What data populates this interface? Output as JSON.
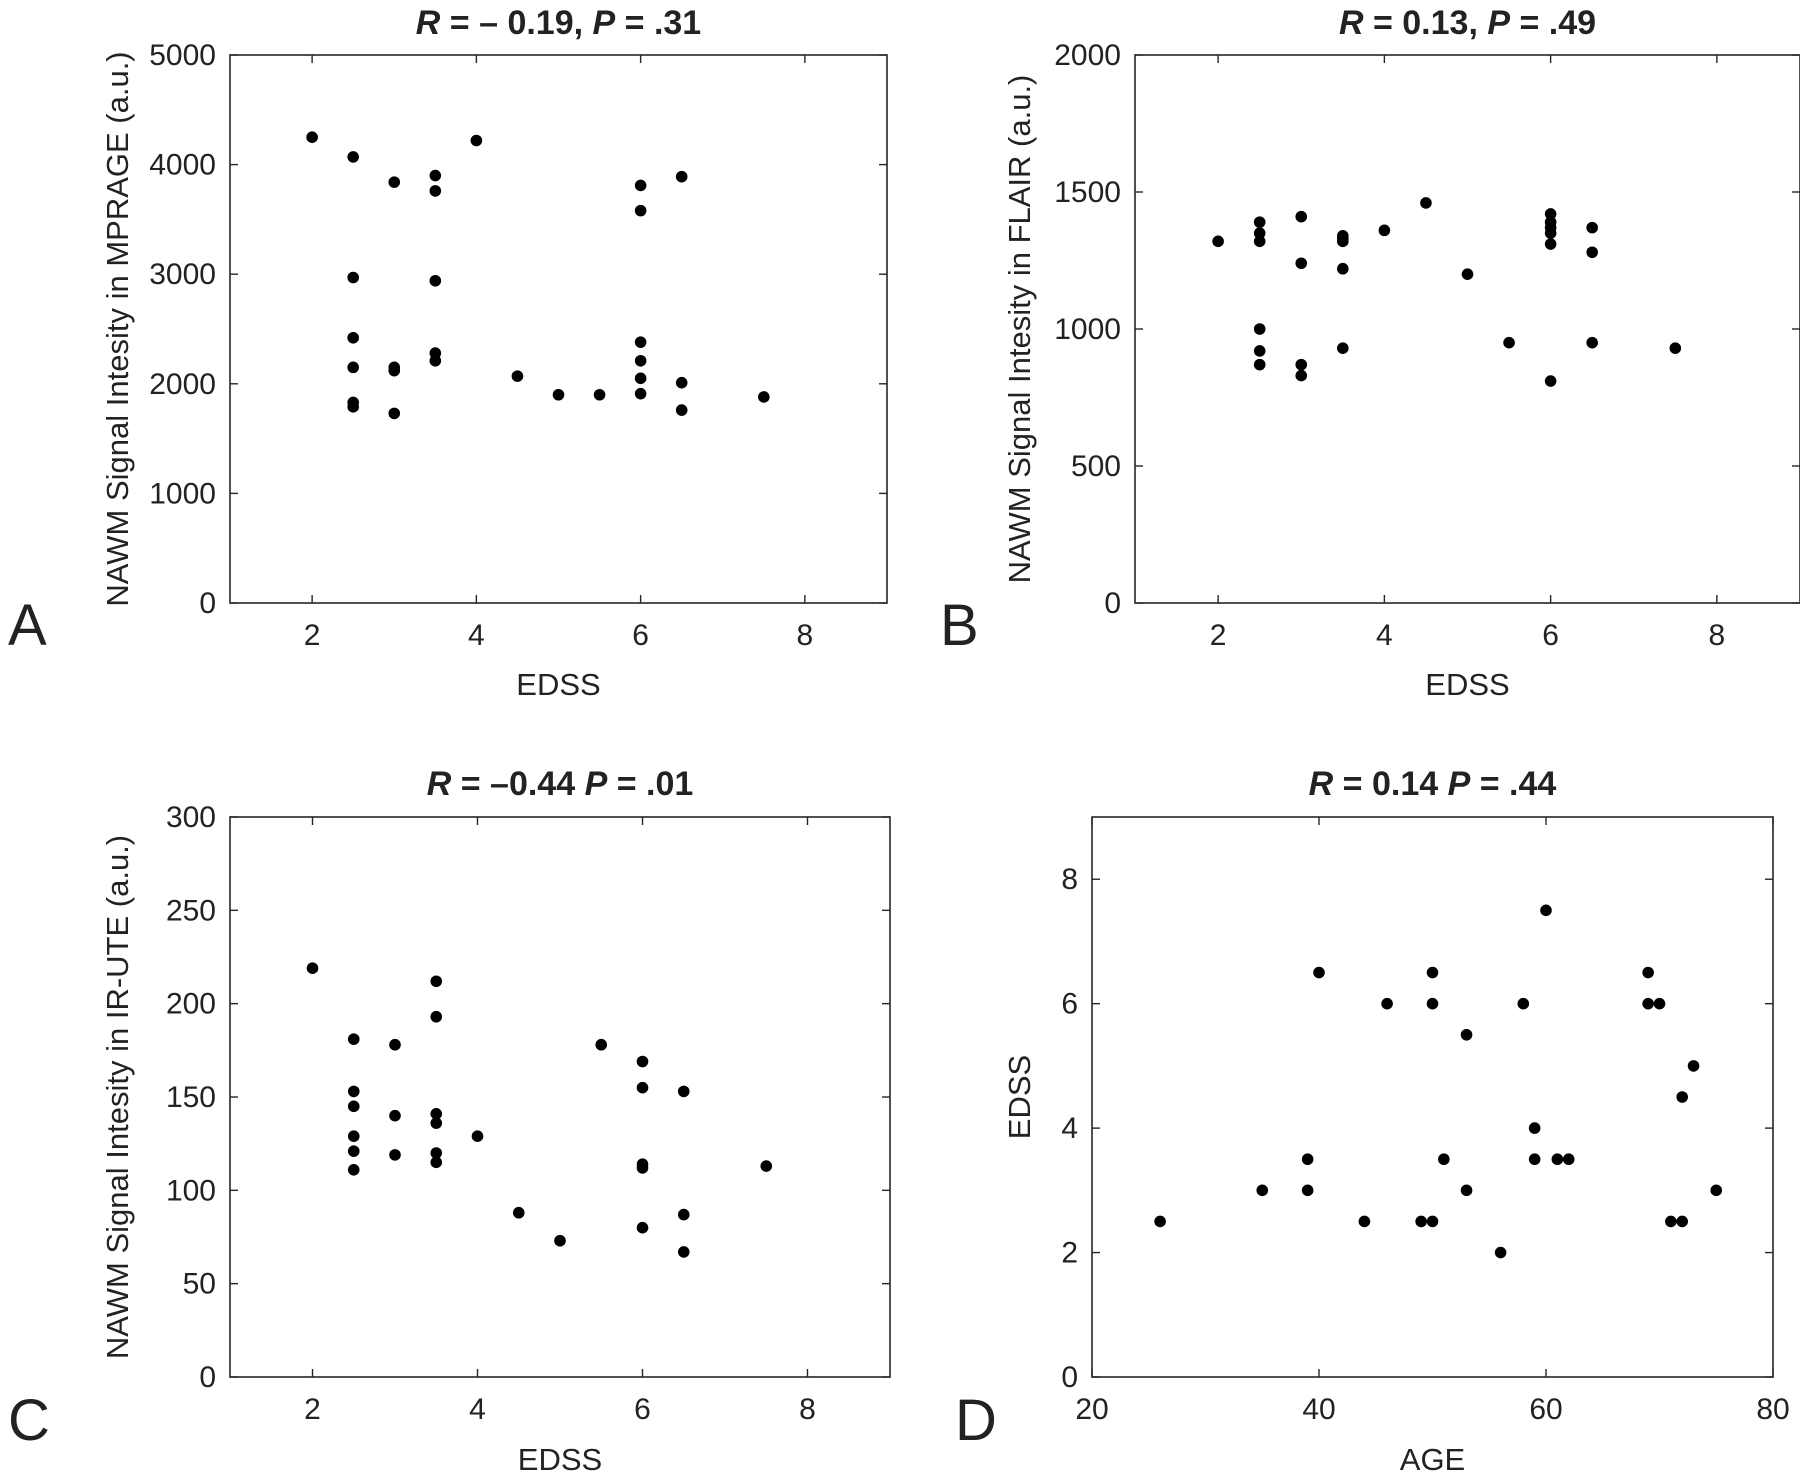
{
  "chart_data": [
    {
      "type": "scatter",
      "panel": "A",
      "title": "R = – 0.19, P = .31",
      "title_parts": [
        {
          "text": "R",
          "italic": true
        },
        {
          "text": " = – 0.19, ",
          "italic": false
        },
        {
          "text": "P",
          "italic": true
        },
        {
          "text": " = .31",
          "italic": false
        }
      ],
      "xlabel": "EDSS",
      "ylabel": "NAWM Signal Intesity in MPRAGE (a.u.)",
      "xlim": [
        1,
        9
      ],
      "ylim": [
        0,
        5000
      ],
      "xticks": [
        2,
        4,
        6,
        8
      ],
      "yticks": [
        0,
        1000,
        2000,
        3000,
        4000,
        5000
      ],
      "grid": false,
      "points": [
        [
          2,
          4250
        ],
        [
          2.5,
          4070
        ],
        [
          2.5,
          2970
        ],
        [
          2.5,
          2420
        ],
        [
          2.5,
          2150
        ],
        [
          2.5,
          1830
        ],
        [
          2.5,
          1790
        ],
        [
          3,
          3840
        ],
        [
          3,
          2150
        ],
        [
          3,
          2120
        ],
        [
          3,
          1730
        ],
        [
          3.5,
          3900
        ],
        [
          3.5,
          3760
        ],
        [
          3.5,
          2940
        ],
        [
          3.5,
          2280
        ],
        [
          3.5,
          2210
        ],
        [
          4,
          4220
        ],
        [
          4.5,
          2070
        ],
        [
          5,
          1900
        ],
        [
          5.5,
          1900
        ],
        [
          6,
          3810
        ],
        [
          6,
          3580
        ],
        [
          6,
          2380
        ],
        [
          6,
          2210
        ],
        [
          6,
          2050
        ],
        [
          6,
          1910
        ],
        [
          6.5,
          3890
        ],
        [
          6.5,
          2010
        ],
        [
          6.5,
          1760
        ],
        [
          7.5,
          1880
        ]
      ]
    },
    {
      "type": "scatter",
      "panel": "B",
      "title": "R = 0.13, P = .49",
      "title_parts": [
        {
          "text": "R",
          "italic": true
        },
        {
          "text": " = 0.13, ",
          "italic": false
        },
        {
          "text": "P",
          "italic": true
        },
        {
          "text": " = .49",
          "italic": false
        }
      ],
      "xlabel": "EDSS",
      "ylabel": "NAWM Signal Intesity in FLAIR (a.u.)",
      "xlim": [
        1,
        9
      ],
      "ylim": [
        0,
        2000
      ],
      "xticks": [
        2,
        4,
        6,
        8
      ],
      "yticks": [
        0,
        500,
        1000,
        1500,
        2000
      ],
      "grid": false,
      "points": [
        [
          2,
          1320
        ],
        [
          2.5,
          1390
        ],
        [
          2.5,
          1350
        ],
        [
          2.5,
          1320
        ],
        [
          2.5,
          1000
        ],
        [
          2.5,
          920
        ],
        [
          2.5,
          870
        ],
        [
          3,
          1410
        ],
        [
          3,
          1240
        ],
        [
          3,
          870
        ],
        [
          3,
          830
        ],
        [
          3.5,
          1340
        ],
        [
          3.5,
          1330
        ],
        [
          3.5,
          1320
        ],
        [
          3.5,
          1220
        ],
        [
          3.5,
          930
        ],
        [
          4,
          1360
        ],
        [
          4.5,
          1460
        ],
        [
          5,
          1200
        ],
        [
          5.5,
          950
        ],
        [
          6,
          1420
        ],
        [
          6,
          1390
        ],
        [
          6,
          1370
        ],
        [
          6,
          1350
        ],
        [
          6,
          1310
        ],
        [
          6,
          810
        ],
        [
          6.5,
          1370
        ],
        [
          6.5,
          1280
        ],
        [
          6.5,
          950
        ],
        [
          7.5,
          930
        ]
      ]
    },
    {
      "type": "scatter",
      "panel": "C",
      "title": "R = –0.44 P = .01",
      "title_parts": [
        {
          "text": "R",
          "italic": true
        },
        {
          "text": " = –0.44 ",
          "italic": false
        },
        {
          "text": "P",
          "italic": true
        },
        {
          "text": " = .01",
          "italic": false
        }
      ],
      "xlabel": "EDSS",
      "ylabel": "NAWM Signal Intesity in IR-UTE (a.u.)",
      "xlim": [
        1,
        9
      ],
      "ylim": [
        0,
        300
      ],
      "xticks": [
        2,
        4,
        6,
        8
      ],
      "yticks": [
        0,
        50,
        100,
        150,
        200,
        250,
        300
      ],
      "grid": false,
      "points": [
        [
          2,
          219
        ],
        [
          2.5,
          181
        ],
        [
          2.5,
          153
        ],
        [
          2.5,
          145
        ],
        [
          2.5,
          129
        ],
        [
          2.5,
          121
        ],
        [
          2.5,
          111
        ],
        [
          3,
          178
        ],
        [
          3,
          140
        ],
        [
          3,
          119
        ],
        [
          3.5,
          212
        ],
        [
          3.5,
          193
        ],
        [
          3.5,
          141
        ],
        [
          3.5,
          136
        ],
        [
          3.5,
          120
        ],
        [
          3.5,
          115
        ],
        [
          4,
          129
        ],
        [
          4.5,
          88
        ],
        [
          5,
          73
        ],
        [
          5.5,
          178
        ],
        [
          6,
          169
        ],
        [
          6,
          155
        ],
        [
          6,
          114
        ],
        [
          6,
          112
        ],
        [
          6,
          80
        ],
        [
          6.5,
          153
        ],
        [
          6.5,
          87
        ],
        [
          6.5,
          67
        ],
        [
          7.5,
          113
        ]
      ]
    },
    {
      "type": "scatter",
      "panel": "D",
      "title": "R = 0.14 P = .44",
      "title_parts": [
        {
          "text": "R",
          "italic": true
        },
        {
          "text": " = 0.14 ",
          "italic": false
        },
        {
          "text": "P",
          "italic": true
        },
        {
          "text": " = .44",
          "italic": false
        }
      ],
      "xlabel": "AGE",
      "ylabel": "EDSS",
      "xlim": [
        20,
        80
      ],
      "ylim": [
        0,
        9
      ],
      "xticks": [
        20,
        40,
        60,
        80
      ],
      "yticks": [
        0,
        2,
        4,
        6,
        8
      ],
      "grid": false,
      "points": [
        [
          26,
          2.5
        ],
        [
          35,
          3
        ],
        [
          39,
          3.5
        ],
        [
          39,
          3
        ],
        [
          40,
          6.5
        ],
        [
          44,
          2.5
        ],
        [
          46,
          6
        ],
        [
          49,
          2.5
        ],
        [
          50,
          6.5
        ],
        [
          50,
          6
        ],
        [
          50,
          2.5
        ],
        [
          51,
          3.5
        ],
        [
          53,
          5.5
        ],
        [
          53,
          3
        ],
        [
          56,
          2
        ],
        [
          58,
          6
        ],
        [
          59,
          4
        ],
        [
          59,
          3.5
        ],
        [
          60,
          7.5
        ],
        [
          61,
          3.5
        ],
        [
          62,
          3.5
        ],
        [
          69,
          6.5
        ],
        [
          69,
          6
        ],
        [
          70,
          6
        ],
        [
          71,
          2.5
        ],
        [
          72,
          4.5
        ],
        [
          72,
          2.5
        ],
        [
          73,
          5
        ],
        [
          75,
          3
        ]
      ]
    }
  ]
}
